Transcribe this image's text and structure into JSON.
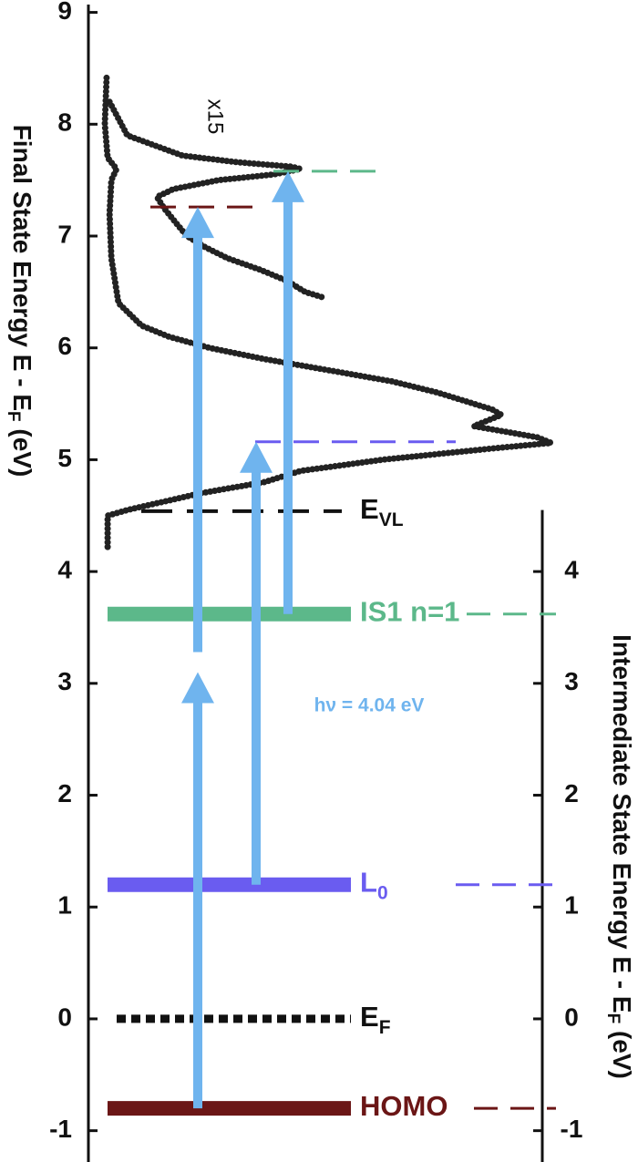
{
  "chart_data": {
    "type": "energy-diagram",
    "ylabel": {
      "text": "Final State Energy E - E",
      "sub": "F",
      "unit": " (eV)"
    },
    "y2label": {
      "text": "Intermediate State Energy E - E",
      "sub": "F",
      "unit": " (eV)"
    },
    "ylim": [
      -1.28,
      9.07
    ],
    "yticks": [
      -1,
      0,
      1,
      2,
      3,
      4,
      5,
      6,
      7,
      8,
      9
    ],
    "y2lim": [
      -1.28,
      4.55
    ],
    "y2ticks": [
      -1,
      0,
      1,
      2,
      3,
      4
    ],
    "xlim": [
      0,
      100
    ],
    "series": [
      {
        "color": "#222222",
        "x": [
          4.1,
          4.1,
          8.3,
          23.9,
          37.5,
          45.2,
          62.7,
          86.0,
          98.6,
          95.7,
          82.1,
          88.0,
          86.0,
          74.4,
          64.7,
          51.1,
          37.5,
          25.8,
          17.1,
          11.3,
          6.4,
          4.9,
          4.5,
          4.9,
          6.0,
          4.1,
          3.5,
          3.9
        ],
        "values": [
          4.22,
          4.5,
          4.55,
          4.7,
          4.8,
          4.9,
          5.0,
          5.1,
          5.15,
          5.2,
          5.3,
          5.4,
          5.45,
          5.6,
          5.7,
          5.8,
          5.9,
          6.0,
          6.1,
          6.2,
          6.4,
          6.8,
          7.2,
          7.5,
          7.6,
          7.7,
          8.0,
          8.45
        ]
      },
      {
        "color": "#222222",
        "annotation": "x15",
        "x": [
          4.5,
          8.3,
          20.0,
          31.7,
          43.3,
          45.2,
          39.4,
          27.8,
          18.1,
          14.6,
          16.1,
          19.0,
          21.0,
          24.9,
          29.7,
          36.5,
          42.3,
          46.2,
          50.1
        ],
        "values": [
          8.2,
          7.9,
          7.72,
          7.66,
          7.62,
          7.6,
          7.55,
          7.5,
          7.42,
          7.35,
          7.25,
          7.1,
          7.0,
          6.9,
          6.8,
          6.7,
          6.6,
          6.5,
          6.45
        ]
      }
    ],
    "levels": [
      {
        "label": "E",
        "sub": "VL",
        "energy": 4.54,
        "color": "#111111",
        "style": "dashed"
      },
      {
        "label": "IS1 n=1",
        "energy": 3.62,
        "color": "#5cb88a",
        "style": "solid"
      },
      {
        "label": "L",
        "sub": "0",
        "energy": 1.2,
        "color": "#6a5cf0",
        "style": "solid"
      },
      {
        "label": "E",
        "sub": "F",
        "energy": 0,
        "color": "#111111",
        "style": "dotted"
      },
      {
        "label": "HOMO",
        "energy": -0.8,
        "color": "#6b1616",
        "style": "solid"
      }
    ],
    "guides": [
      {
        "energy": 7.58,
        "color": "#5cb88a"
      },
      {
        "energy": 7.26,
        "color": "#6b1616"
      },
      {
        "energy": 5.16,
        "color": "#6a5cf0"
      }
    ],
    "transitions": [
      {
        "from": -0.8,
        "to": 3.1
      },
      {
        "from": 3.28,
        "to": 7.26
      },
      {
        "from": 1.2,
        "to": 5.16
      },
      {
        "from": 3.62,
        "to": 7.58
      }
    ],
    "arrow_color": "#6fb4ee",
    "photon_label": "hν = 4.04 eV"
  }
}
